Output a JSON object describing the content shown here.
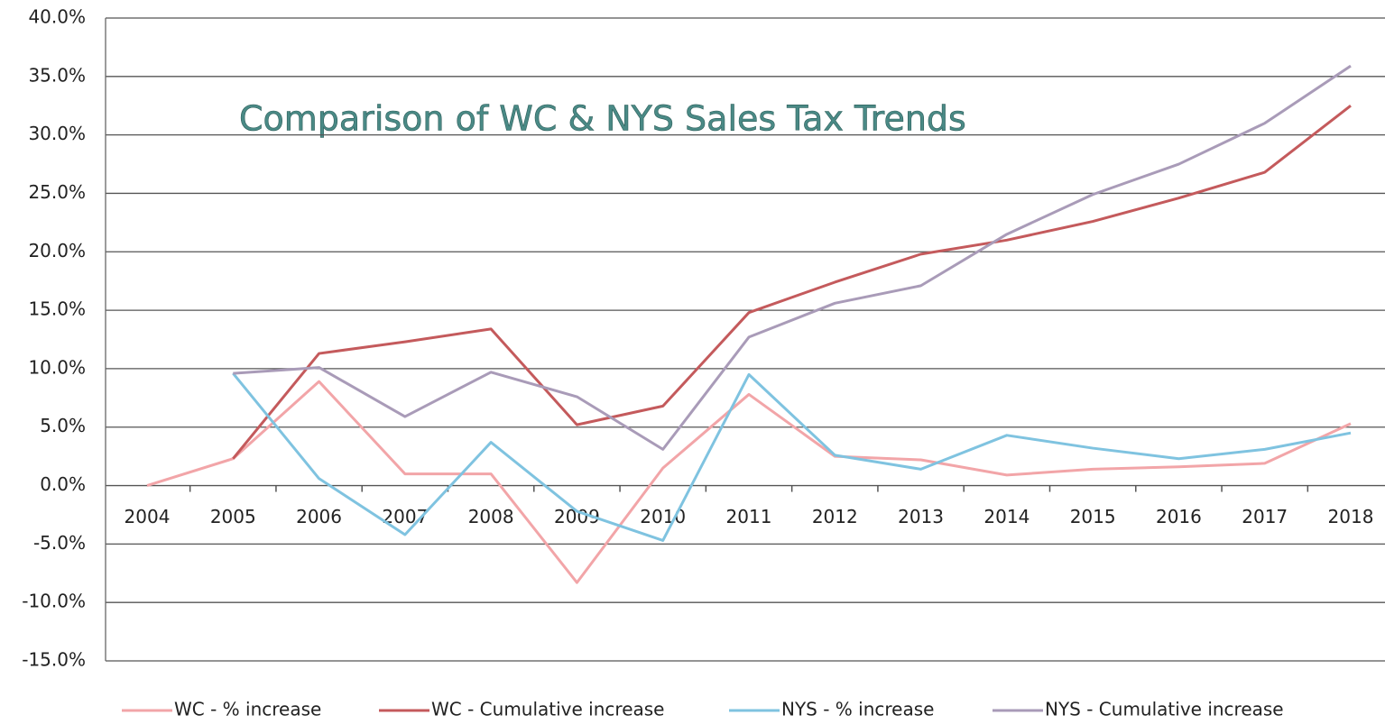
{
  "chart_data": {
    "type": "line",
    "title": "Comparison of WC & NYS Sales Tax Trends",
    "categories": [
      "2004",
      "2005",
      "2006",
      "2007",
      "2008",
      "2009",
      "2010",
      "2011",
      "2012",
      "2013",
      "2014",
      "2015",
      "2016",
      "2017",
      "2018"
    ],
    "series": [
      {
        "name": "WC - % increase",
        "color": "#f2a5a8",
        "values": [
          0,
          2.3,
          8.9,
          1.0,
          1.0,
          -8.3,
          1.5,
          7.8,
          2.5,
          2.2,
          0.9,
          1.4,
          1.6,
          1.9,
          5.3
        ]
      },
      {
        "name": "WC - Cumulative increase",
        "color": "#c45a5c",
        "values": [
          null,
          2.3,
          11.3,
          12.3,
          13.4,
          5.2,
          6.8,
          14.8,
          17.4,
          19.8,
          21.0,
          22.6,
          24.6,
          26.8,
          32.5
        ]
      },
      {
        "name": "NYS - % increase",
        "color": "#7fc3e0",
        "values": [
          null,
          9.6,
          0.6,
          -4.2,
          3.7,
          -2.2,
          -4.7,
          9.5,
          2.6,
          1.4,
          4.3,
          3.2,
          2.3,
          3.1,
          4.5
        ]
      },
      {
        "name": "NYS - Cumulative increase",
        "color": "#a99bb8",
        "values": [
          null,
          9.6,
          10.1,
          5.9,
          9.7,
          7.6,
          3.1,
          12.7,
          15.6,
          17.1,
          21.5,
          24.9,
          27.5,
          31.0,
          35.9
        ]
      }
    ],
    "ylim": [
      -15,
      40
    ],
    "yticks": [
      {
        "value": -15,
        "label": "-15.0%"
      },
      {
        "value": -10,
        "label": "-10.0%"
      },
      {
        "value": -5,
        "label": "-5.0%"
      },
      {
        "value": 0,
        "label": "0.0%"
      },
      {
        "value": 5,
        "label": "5.0%"
      },
      {
        "value": 10,
        "label": "10.0%"
      },
      {
        "value": 15,
        "label": "15.0%"
      },
      {
        "value": 20,
        "label": "20.0%"
      },
      {
        "value": 25,
        "label": "25.0%"
      },
      {
        "value": 30,
        "label": "30.0%"
      },
      {
        "value": 35,
        "label": "35.0%"
      },
      {
        "value": 40,
        "label": "40.0%"
      }
    ],
    "grid": true,
    "legend": "bottom"
  }
}
